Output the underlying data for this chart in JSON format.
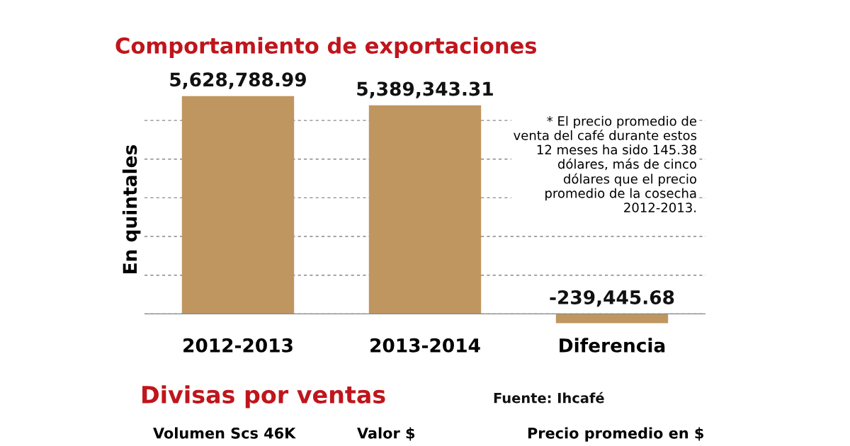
{
  "chart_data": {
    "type": "bar",
    "title": "Comportamiento de exportaciones",
    "ylabel": "En quintales",
    "categories": [
      "2012-2013",
      "2013-2014",
      "Diferencia"
    ],
    "values": [
      5628788.99,
      5389343.31,
      -239445.68
    ],
    "value_labels": [
      "5,628,788.99",
      "5,389,343.31",
      "-239,445.68"
    ],
    "color": "#bf965f",
    "yticks": [
      {
        "value": 0,
        "label": null
      },
      {
        "value": 1000000,
        "label": null
      },
      {
        "value": 2000000,
        "label": null
      },
      {
        "value": 3000000,
        "label": null
      },
      {
        "value": 4000000,
        "label": null
      },
      {
        "value": 5000000,
        "label": null
      }
    ],
    "grid": "y",
    "tick_labels": "x",
    "annotations": [
      "* El precio promedio de venta del café durante estos 12 meses ha sido 145.38 dólares, más de cinco dólares que el precio promedio de la cosecha 2012-2013.",
      "Divisas por ventas",
      "Fuente: Ihcafé",
      "Volumen Scs 46K",
      "Valor $",
      "Precio promedio en $"
    ]
  }
}
